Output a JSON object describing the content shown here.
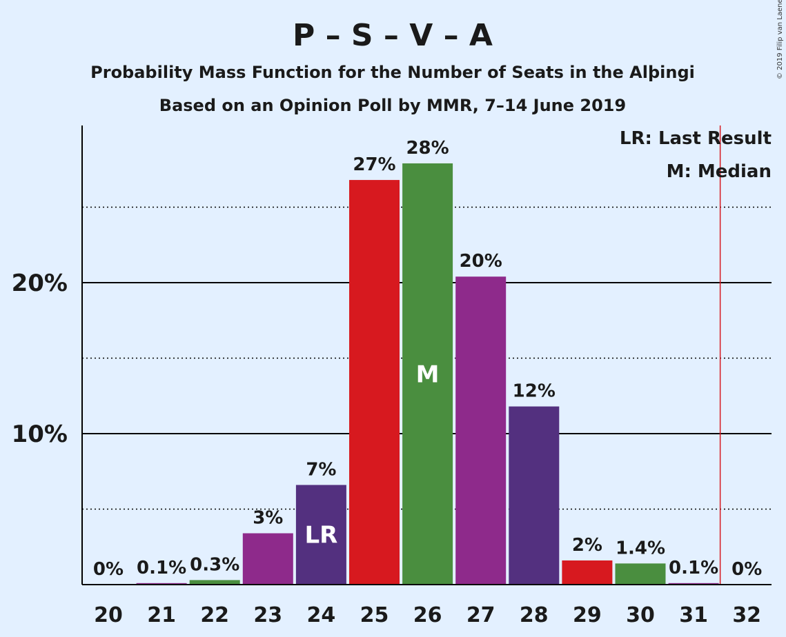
{
  "chart_data": {
    "type": "bar",
    "title": "P – S – V – A",
    "subtitle_1": "Probability Mass Function for the Number of Seats in the Alþingi",
    "subtitle_2": "Based on an Opinion Poll by MMR, 7–14 June 2019",
    "copyright": "© 2019 Filip van Laenen",
    "categories": [
      "20",
      "21",
      "22",
      "23",
      "24",
      "25",
      "26",
      "27",
      "28",
      "29",
      "30",
      "31",
      "32"
    ],
    "values": [
      0,
      0.1,
      0.3,
      3.4,
      6.6,
      26.8,
      27.9,
      20.4,
      11.8,
      1.6,
      1.4,
      0.1,
      0
    ],
    "value_labels": [
      "0%",
      "0.1%",
      "0.3%",
      "3%",
      "7%",
      "27%",
      "28%",
      "20%",
      "12%",
      "2%",
      "1.4%",
      "0.1%",
      "0%"
    ],
    "bar_colors": [
      "#4a8e3f",
      "#8e2a8b",
      "#4a8e3f",
      "#8e2a8b",
      "#53307f",
      "#d7191f",
      "#4a8e3f",
      "#8e2a8b",
      "#53307f",
      "#d7191f",
      "#4a8e3f",
      "#8e2a8b",
      "#4a8e3f"
    ],
    "y_ticks": [
      {
        "value": 10,
        "label": "10%"
      },
      {
        "value": 20,
        "label": "20%"
      }
    ],
    "y_minor_gridlines": [
      5,
      15,
      25
    ],
    "ylim": [
      0,
      30
    ],
    "xlabel": "",
    "ylabel": "",
    "grid": true,
    "annotations": {
      "last_result": {
        "category": "24",
        "text": "LR"
      },
      "median": {
        "category": "26",
        "text": "M"
      },
      "majority_line_between": [
        "31",
        "32"
      ],
      "majority_line_color": "#d7191f"
    },
    "legend": {
      "position": "top-right",
      "entries": [
        "LR: Last Result",
        "M: Median"
      ]
    }
  }
}
